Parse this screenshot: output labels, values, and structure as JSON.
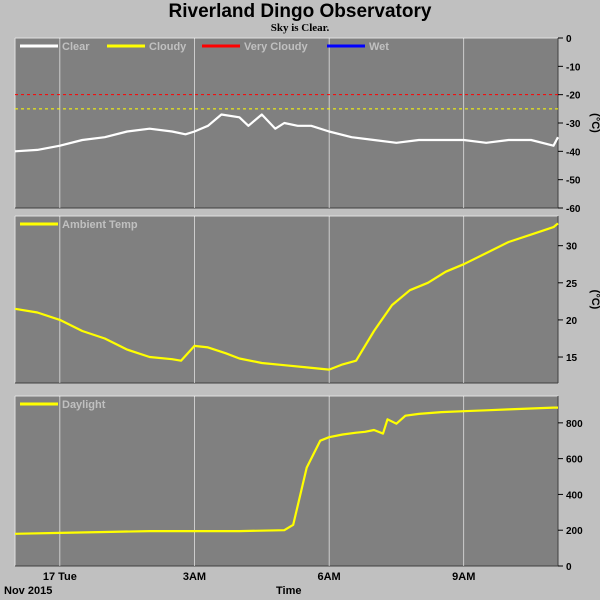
{
  "title": "Riverland Dingo Observatory",
  "subtitle": "Sky is Clear.",
  "footer": {
    "month": "Nov 2015",
    "axis_title": "Time"
  },
  "x_ticks": [
    {
      "hour": 1,
      "label": "17 Tue"
    },
    {
      "hour": 4,
      "label": "3AM"
    },
    {
      "hour": 7,
      "label": "6AM"
    },
    {
      "hour": 10,
      "label": "9AM"
    }
  ],
  "x_range_hours": [
    0,
    12.1
  ],
  "colors": {
    "panel_bg": "#808080",
    "outer_bg": "#c0c0c0",
    "grid": "#ffffff",
    "clear": "#ffffff",
    "cloudy": "#ffff00",
    "very_cloudy": "#ff0000",
    "wet": "#0000ff",
    "trace": "#ffff00",
    "legend_text": "#c0c0c0"
  },
  "chart_data": [
    {
      "type": "line",
      "panel": "sky",
      "legend": [
        "Clear",
        "Cloudy",
        "Very Cloudy",
        "Wet"
      ],
      "ylabel": "(°C)",
      "ylim": [
        -60,
        0
      ],
      "yticks": [
        0,
        -10,
        -20,
        -30,
        -40,
        -50,
        -60
      ],
      "thresholds": [
        {
          "name": "Very Cloudy",
          "value": -20
        },
        {
          "name": "Cloudy",
          "value": -25
        }
      ],
      "series": [
        {
          "name": "Clear",
          "x": [
            0,
            0.5,
            1,
            1.5,
            2,
            2.5,
            3,
            3.5,
            3.8,
            4,
            4.3,
            4.6,
            5,
            5.2,
            5.5,
            5.8,
            6,
            6.3,
            6.6,
            7,
            7.5,
            8,
            8.5,
            9,
            9.5,
            10,
            10.5,
            11,
            11.5,
            12,
            12.1
          ],
          "y": [
            -40,
            -39.5,
            -38,
            -36,
            -35,
            -33,
            -32,
            -33,
            -34,
            -33,
            -31,
            -27,
            -28,
            -31,
            -27,
            -32,
            -30,
            -31,
            -31,
            -33,
            -35,
            -36,
            -37,
            -36,
            -36,
            -36,
            -37,
            -36,
            -36,
            -38,
            -35
          ]
        }
      ]
    },
    {
      "type": "line",
      "panel": "ambient",
      "legend": [
        "Ambient Temp"
      ],
      "ylabel": "(°C)",
      "ylim": [
        11.5,
        34
      ],
      "yticks": [
        15,
        20,
        25,
        30
      ],
      "series": [
        {
          "name": "Ambient Temp",
          "x": [
            0,
            0.5,
            1,
            1.5,
            2,
            2.5,
            3,
            3.5,
            3.7,
            4,
            4.3,
            4.7,
            5,
            5.5,
            6,
            6.5,
            7,
            7.3,
            7.6,
            8,
            8.4,
            8.8,
            9.2,
            9.6,
            10,
            10.5,
            11,
            11.5,
            12,
            12.1
          ],
          "y": [
            21.5,
            21,
            20,
            18.5,
            17.5,
            16,
            15,
            14.7,
            14.5,
            16.5,
            16.3,
            15.5,
            14.8,
            14.2,
            13.9,
            13.6,
            13.3,
            14,
            14.5,
            18.5,
            22,
            24,
            25,
            26.5,
            27.5,
            29,
            30.5,
            31.5,
            32.5,
            33
          ]
        }
      ]
    },
    {
      "type": "line",
      "panel": "daylight",
      "legend": [
        "Daylight"
      ],
      "ylim": [
        0,
        950
      ],
      "yticks": [
        0,
        200,
        400,
        600,
        800
      ],
      "series": [
        {
          "name": "Daylight",
          "x": [
            0,
            1,
            2,
            3,
            4,
            5,
            6,
            6.2,
            6.5,
            6.8,
            7,
            7.3,
            7.6,
            7.8,
            8,
            8.2,
            8.3,
            8.5,
            8.7,
            9,
            9.5,
            10,
            10.5,
            11,
            11.5,
            12,
            12.1
          ],
          "y": [
            180,
            185,
            190,
            195,
            195,
            195,
            200,
            230,
            550,
            700,
            720,
            735,
            745,
            750,
            760,
            740,
            820,
            795,
            840,
            850,
            860,
            865,
            870,
            875,
            880,
            885,
            885
          ]
        }
      ]
    }
  ]
}
